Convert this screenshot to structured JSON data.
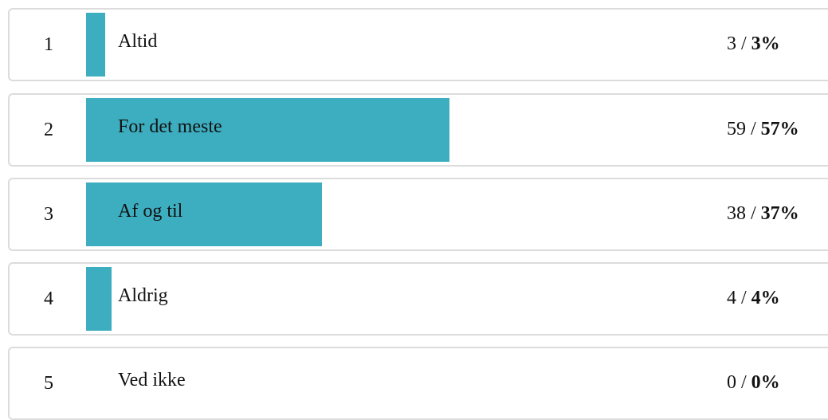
{
  "colors": {
    "bar": "#3daec0",
    "border": "#dcdcdc"
  },
  "rows": [
    {
      "number": "1",
      "label": "Altid",
      "count": "3",
      "separator": "/",
      "percent": "3%",
      "fraction": 0.03
    },
    {
      "number": "2",
      "label": "For det meste",
      "count": "59",
      "separator": "/",
      "percent": "57%",
      "fraction": 0.57
    },
    {
      "number": "3",
      "label": "Af og til",
      "count": "38",
      "separator": "/",
      "percent": "37%",
      "fraction": 0.37
    },
    {
      "number": "4",
      "label": "Aldrig",
      "count": "4",
      "separator": "/",
      "percent": "4%",
      "fraction": 0.04
    },
    {
      "number": "5",
      "label": "Ved ikke",
      "count": "0",
      "separator": "/",
      "percent": "0%",
      "fraction": 0
    }
  ]
}
